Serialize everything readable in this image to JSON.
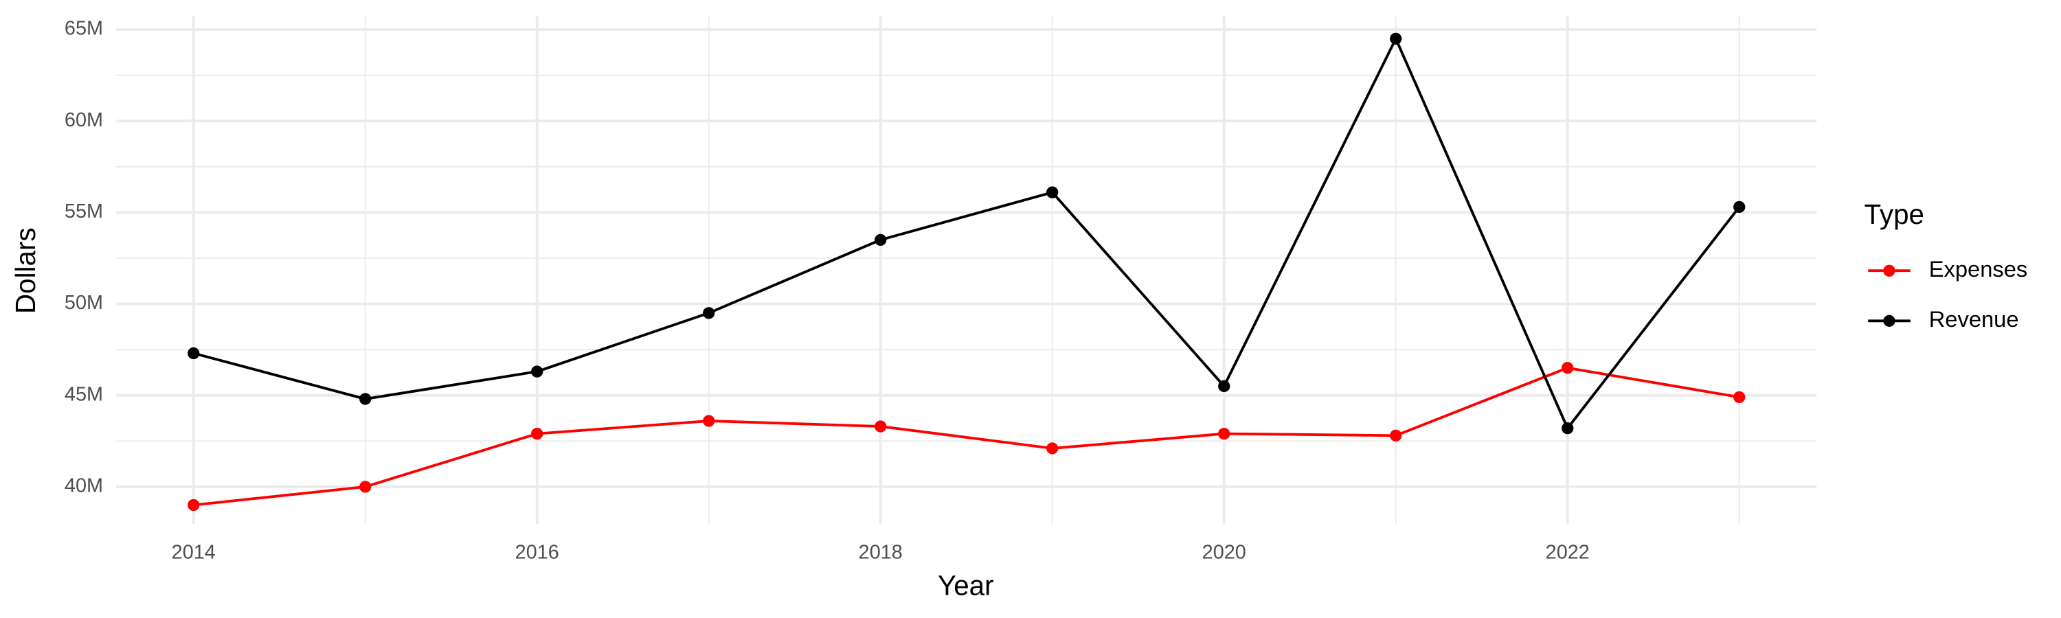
{
  "chart_data": {
    "type": "line",
    "x_label": "Year",
    "y_label": "Dollars",
    "legend_title": "Type",
    "x": [
      2014,
      2015,
      2016,
      2017,
      2018,
      2019,
      2020,
      2021,
      2022,
      2023
    ],
    "series": [
      {
        "name": "Expenses",
        "color": "#ff0000",
        "values": [
          39000000,
          40000000,
          42900000,
          43600000,
          43300000,
          42100000,
          42900000,
          42800000,
          46500000,
          44900000
        ]
      },
      {
        "name": "Revenue",
        "color": "#000000",
        "values": [
          47300000,
          44800000,
          46300000,
          49500000,
          53500000,
          56100000,
          45500000,
          64500000,
          43200000,
          55300000
        ]
      }
    ],
    "xlim": [
      2013.55,
      2023.45
    ],
    "xticks": [
      2014,
      2016,
      2018,
      2020,
      2022
    ],
    "ylim": [
      37950000,
      65750000
    ],
    "yticks": [
      {
        "value": 40000000,
        "label": "40M"
      },
      {
        "value": 45000000,
        "label": "45M"
      },
      {
        "value": 50000000,
        "label": "50M"
      },
      {
        "value": 55000000,
        "label": "55M"
      },
      {
        "value": 60000000,
        "label": "60M"
      },
      {
        "value": 65000000,
        "label": "65M"
      }
    ],
    "grid": true,
    "legend": "right"
  }
}
